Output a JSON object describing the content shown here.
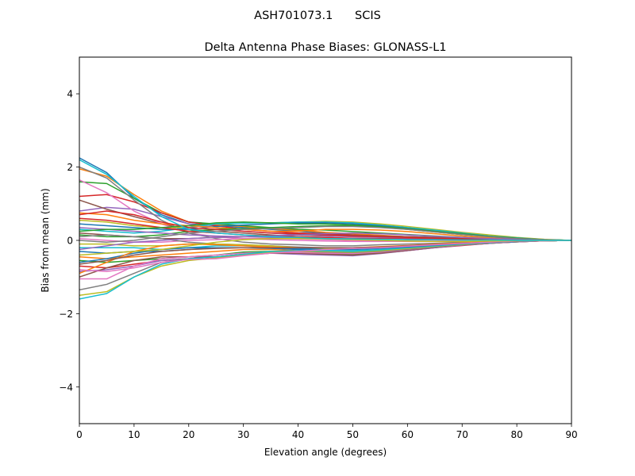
{
  "figure": {
    "suptitle": "ASH701073.1      SCIS"
  },
  "chart_data": {
    "type": "line",
    "title": "Delta Antenna Phase Biases: GLONASS-L1",
    "xlabel": "Elevation angle (degrees)",
    "ylabel": "Bias from mean (mm)",
    "xlim": [
      0,
      90
    ],
    "ylim": [
      -5,
      5
    ],
    "xticks": [
      0,
      10,
      20,
      30,
      40,
      50,
      60,
      70,
      80,
      90
    ],
    "yticks": [
      -4,
      -2,
      0,
      2,
      4
    ],
    "ytick_labels": [
      "−4",
      "−2",
      "0",
      "2",
      "4"
    ],
    "grid": false,
    "legend": "none",
    "x": [
      0,
      5,
      10,
      15,
      20,
      25,
      30,
      35,
      40,
      45,
      50,
      55,
      60,
      65,
      70,
      75,
      80,
      85,
      90
    ],
    "colors": [
      "#1f77b4",
      "#ff7f0e",
      "#2ca02c",
      "#d62728",
      "#9467bd",
      "#8c564b",
      "#e377c2",
      "#7f7f7f",
      "#bcbd22",
      "#17becf"
    ],
    "series": [
      {
        "values": [
          2.25,
          1.85,
          1.15,
          0.7,
          0.45,
          0.4,
          0.35,
          0.3,
          0.25,
          0.2,
          0.15,
          0.12,
          0.1,
          0.08,
          0.05,
          0.03,
          0.02,
          0.01,
          0
        ]
      },
      {
        "values": [
          1.95,
          1.75,
          1.25,
          0.8,
          0.5,
          0.42,
          0.38,
          0.32,
          0.28,
          0.22,
          0.18,
          0.14,
          0.1,
          0.07,
          0.05,
          0.03,
          0.02,
          0.01,
          0
        ]
      },
      {
        "values": [
          1.6,
          1.55,
          1.15,
          0.75,
          0.5,
          0.45,
          0.4,
          0.35,
          0.3,
          0.28,
          0.24,
          0.2,
          0.16,
          0.12,
          0.08,
          0.05,
          0.03,
          0.01,
          0
        ]
      },
      {
        "values": [
          1.2,
          1.25,
          1.05,
          0.75,
          0.5,
          0.4,
          0.3,
          0.25,
          0.2,
          0.18,
          0.15,
          0.12,
          0.1,
          0.08,
          0.05,
          0.03,
          0.02,
          0.01,
          0
        ]
      },
      {
        "values": [
          0.8,
          0.9,
          0.85,
          0.65,
          0.45,
          0.35,
          0.25,
          0.2,
          0.15,
          0.12,
          0.1,
          0.08,
          0.06,
          0.05,
          0.04,
          0.03,
          0.02,
          0.01,
          0
        ]
      },
      {
        "values": [
          1.1,
          0.85,
          0.65,
          0.45,
          0.3,
          0.25,
          0.2,
          0.15,
          0.1,
          0.08,
          0.05,
          0.04,
          0.03,
          0.02,
          0.01,
          0.01,
          0,
          0,
          0
        ]
      },
      {
        "values": [
          1.65,
          1.3,
          0.8,
          0.45,
          0.2,
          0.1,
          0.05,
          0.02,
          0,
          -0.02,
          -0.03,
          -0.03,
          -0.02,
          -0.02,
          -0.01,
          -0.01,
          0,
          0,
          0
        ]
      },
      {
        "values": [
          2.0,
          1.7,
          1.1,
          0.55,
          0.2,
          0.05,
          -0.05,
          -0.1,
          -0.12,
          -0.15,
          -0.15,
          -0.12,
          -0.1,
          -0.08,
          -0.05,
          -0.03,
          -0.02,
          -0.01,
          0
        ]
      },
      {
        "values": [
          0.55,
          0.5,
          0.4,
          0.35,
          0.35,
          0.45,
          0.48,
          0.48,
          0.5,
          0.52,
          0.5,
          0.45,
          0.38,
          0.3,
          0.22,
          0.15,
          0.08,
          0.03,
          0
        ]
      },
      {
        "values": [
          0.3,
          0.25,
          0.2,
          0.25,
          0.35,
          0.45,
          0.47,
          0.48,
          0.5,
          0.5,
          0.48,
          0.42,
          0.35,
          0.28,
          0.2,
          0.12,
          0.07,
          0.02,
          0
        ]
      },
      {
        "values": [
          0.45,
          0.4,
          0.35,
          0.3,
          0.3,
          0.38,
          0.42,
          0.45,
          0.48,
          0.48,
          0.45,
          0.4,
          0.33,
          0.25,
          0.18,
          0.11,
          0.06,
          0.02,
          0
        ]
      },
      {
        "values": [
          0.75,
          0.7,
          0.55,
          0.45,
          0.4,
          0.35,
          0.3,
          0.25,
          0.25,
          0.3,
          0.3,
          0.28,
          0.24,
          0.18,
          0.12,
          0.07,
          0.04,
          0.01,
          0
        ]
      },
      {
        "values": [
          0.15,
          0.1,
          0.1,
          0.15,
          0.25,
          0.3,
          0.32,
          0.35,
          0.38,
          0.4,
          0.4,
          0.36,
          0.3,
          0.23,
          0.16,
          0.1,
          0.05,
          0.02,
          0
        ]
      },
      {
        "values": [
          0.6,
          0.55,
          0.45,
          0.35,
          0.25,
          0.2,
          0.15,
          0.12,
          0.1,
          0.08,
          0.06,
          0.05,
          0.04,
          0.03,
          0.02,
          0.01,
          0,
          0,
          0
        ]
      },
      {
        "values": [
          0.35,
          0.3,
          0.25,
          0.2,
          0.15,
          0.12,
          0.1,
          0.08,
          0.06,
          0.05,
          0.04,
          0.03,
          0.02,
          0.02,
          0.01,
          0.01,
          0,
          0,
          0
        ]
      },
      {
        "values": [
          0.2,
          0.15,
          0.1,
          0.05,
          0.05,
          0.08,
          0.1,
          0.12,
          0.15,
          0.15,
          0.14,
          0.12,
          0.1,
          0.08,
          0.06,
          0.04,
          0.02,
          0.01,
          0
        ]
      },
      {
        "values": [
          0.05,
          0.0,
          -0.05,
          -0.05,
          0.0,
          0.02,
          0.05,
          0.05,
          0.04,
          0.02,
          0.0,
          -0.02,
          -0.03,
          -0.03,
          -0.02,
          -0.01,
          -0.01,
          0,
          0
        ]
      },
      {
        "values": [
          0.1,
          0.15,
          0.1,
          0.05,
          -0.05,
          -0.1,
          -0.12,
          -0.15,
          -0.18,
          -0.2,
          -0.2,
          -0.18,
          -0.15,
          -0.12,
          -0.08,
          -0.05,
          -0.03,
          -0.01,
          0
        ]
      },
      {
        "values": [
          -0.1,
          -0.1,
          -0.15,
          -0.15,
          -0.1,
          -0.1,
          -0.12,
          -0.15,
          -0.2,
          -0.22,
          -0.22,
          -0.2,
          -0.16,
          -0.12,
          -0.08,
          -0.05,
          -0.03,
          -0.01,
          0
        ]
      },
      {
        "values": [
          -0.2,
          -0.2,
          -0.2,
          -0.25,
          -0.2,
          -0.15,
          -0.15,
          -0.2,
          -0.25,
          -0.28,
          -0.28,
          -0.25,
          -0.2,
          -0.15,
          -0.1,
          -0.06,
          -0.03,
          -0.01,
          0
        ]
      },
      {
        "values": [
          -0.3,
          -0.35,
          -0.3,
          -0.3,
          -0.25,
          -0.2,
          -0.2,
          -0.22,
          -0.25,
          -0.3,
          -0.32,
          -0.28,
          -0.22,
          -0.16,
          -0.1,
          -0.06,
          -0.03,
          -0.01,
          0
        ]
      },
      {
        "values": [
          -0.45,
          -0.5,
          -0.45,
          -0.4,
          -0.35,
          -0.3,
          -0.25,
          -0.25,
          -0.28,
          -0.32,
          -0.35,
          -0.3,
          -0.24,
          -0.18,
          -0.12,
          -0.07,
          -0.04,
          -0.01,
          0
        ]
      },
      {
        "values": [
          -0.55,
          -0.6,
          -0.55,
          -0.5,
          -0.45,
          -0.4,
          -0.32,
          -0.3,
          -0.32,
          -0.35,
          -0.38,
          -0.33,
          -0.26,
          -0.19,
          -0.13,
          -0.08,
          -0.04,
          -0.01,
          0
        ]
      },
      {
        "values": [
          -0.7,
          -0.75,
          -0.65,
          -0.55,
          -0.5,
          -0.45,
          -0.38,
          -0.33,
          -0.35,
          -0.38,
          -0.4,
          -0.35,
          -0.28,
          -0.2,
          -0.14,
          -0.08,
          -0.04,
          -0.01,
          0
        ]
      },
      {
        "values": [
          -0.85,
          -0.8,
          -0.7,
          -0.55,
          -0.5,
          -0.45,
          -0.4,
          -0.35,
          -0.38,
          -0.4,
          -0.42,
          -0.36,
          -0.28,
          -0.2,
          -0.13,
          -0.08,
          -0.04,
          -0.01,
          0
        ]
      },
      {
        "values": [
          -1.0,
          -0.75,
          -0.55,
          -0.45,
          -0.45,
          -0.45,
          -0.4,
          -0.35,
          -0.35,
          -0.38,
          -0.4,
          -0.35,
          -0.27,
          -0.19,
          -0.12,
          -0.07,
          -0.03,
          -0.01,
          0
        ]
      },
      {
        "values": [
          -1.05,
          -1.05,
          -0.7,
          -0.5,
          -0.45,
          -0.4,
          -0.35,
          -0.32,
          -0.33,
          -0.35,
          -0.36,
          -0.32,
          -0.25,
          -0.18,
          -0.12,
          -0.07,
          -0.03,
          -0.01,
          0
        ]
      },
      {
        "values": [
          -1.35,
          -1.2,
          -0.9,
          -0.6,
          -0.5,
          -0.45,
          -0.38,
          -0.32,
          -0.3,
          -0.32,
          -0.33,
          -0.3,
          -0.24,
          -0.18,
          -0.12,
          -0.07,
          -0.03,
          -0.01,
          0
        ]
      },
      {
        "values": [
          -1.5,
          -1.4,
          -1.0,
          -0.7,
          -0.55,
          -0.48,
          -0.4,
          -0.33,
          -0.3,
          -0.3,
          -0.32,
          -0.28,
          -0.22,
          -0.16,
          -0.11,
          -0.06,
          -0.03,
          -0.01,
          0
        ]
      },
      {
        "values": [
          -1.6,
          -1.45,
          -1.0,
          -0.65,
          -0.5,
          -0.45,
          -0.38,
          -0.3,
          -0.28,
          -0.28,
          -0.3,
          -0.26,
          -0.2,
          -0.15,
          -0.1,
          -0.06,
          -0.03,
          -0.01,
          0
        ]
      },
      {
        "values": [
          -0.6,
          -0.5,
          -0.35,
          -0.25,
          -0.2,
          -0.2,
          -0.2,
          -0.2,
          -0.22,
          -0.25,
          -0.25,
          -0.22,
          -0.18,
          -0.13,
          -0.09,
          -0.05,
          -0.03,
          -0.01,
          0
        ]
      },
      {
        "values": [
          -0.9,
          -0.6,
          -0.3,
          -0.15,
          -0.1,
          -0.12,
          -0.15,
          -0.18,
          -0.2,
          -0.2,
          -0.2,
          -0.17,
          -0.14,
          -0.1,
          -0.07,
          -0.04,
          -0.02,
          -0.01,
          0
        ]
      },
      {
        "values": [
          0.25,
          0.3,
          0.3,
          0.35,
          0.4,
          0.48,
          0.5,
          0.48,
          0.45,
          0.45,
          0.42,
          0.38,
          0.32,
          0.25,
          0.18,
          0.11,
          0.06,
          0.02,
          0
        ]
      },
      {
        "values": [
          0.7,
          0.8,
          0.7,
          0.5,
          0.35,
          0.3,
          0.25,
          0.2,
          0.18,
          0.15,
          0.12,
          0.1,
          0.08,
          0.06,
          0.04,
          0.02,
          0.01,
          0,
          0
        ]
      },
      {
        "values": [
          -0.25,
          -0.15,
          -0.05,
          0.0,
          0.05,
          0.08,
          0.1,
          0.12,
          0.15,
          0.18,
          0.2,
          0.18,
          0.15,
          0.11,
          0.08,
          0.05,
          0.03,
          0.01,
          0
        ]
      },
      {
        "values": [
          -0.65,
          -0.55,
          -0.4,
          -0.3,
          -0.25,
          -0.22,
          -0.2,
          -0.2,
          -0.2,
          -0.2,
          -0.2,
          -0.18,
          -0.15,
          -0.11,
          -0.08,
          -0.05,
          -0.02,
          -0.01,
          0
        ]
      },
      {
        "values": [
          -0.8,
          -0.85,
          -0.75,
          -0.6,
          -0.52,
          -0.5,
          -0.42,
          -0.35,
          -0.3,
          -0.25,
          -0.22,
          -0.2,
          -0.16,
          -0.12,
          -0.08,
          -0.05,
          -0.02,
          -0.01,
          0
        ]
      },
      {
        "values": [
          0.0,
          -0.05,
          0.0,
          0.1,
          0.2,
          0.25,
          0.3,
          0.32,
          0.35,
          0.38,
          0.38,
          0.35,
          0.3,
          0.23,
          0.16,
          0.1,
          0.05,
          0.02,
          0
        ]
      },
      {
        "values": [
          -0.4,
          -0.35,
          -0.3,
          -0.25,
          -0.15,
          -0.05,
          0.02,
          0.05,
          0.05,
          0.04,
          0.02,
          0.0,
          -0.02,
          -0.03,
          -0.03,
          -0.02,
          -0.01,
          0,
          0
        ]
      },
      {
        "values": [
          2.2,
          1.8,
          1.2,
          0.65,
          0.3,
          0.2,
          0.15,
          0.1,
          0.08,
          0.05,
          0.04,
          0.03,
          0.02,
          0.02,
          0.01,
          0.01,
          0,
          0,
          0
        ]
      }
    ]
  }
}
